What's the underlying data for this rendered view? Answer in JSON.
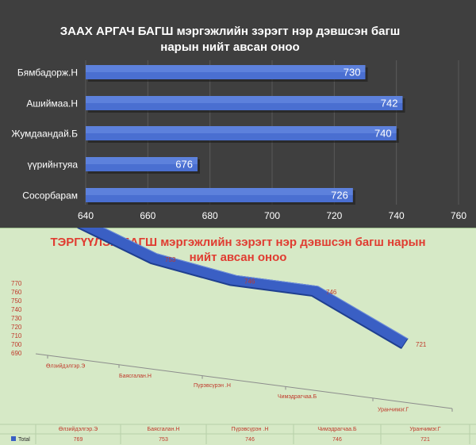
{
  "chart_data": [
    {
      "type": "bar",
      "orientation": "horizontal",
      "title": "ЗААХ АРГАЧ БАГШ мэргэжлийн зэрэгт нэр дэвшсэн багш нарын нийт авсан оноо",
      "title_lines": [
        "ЗААХ АРГАЧ БАГШ мэргэжлийн зэрэгт нэр дэвшсэн багш",
        "нарын нийт авсан оноо"
      ],
      "categories": [
        "Бямбадорж.Н",
        "Ашиймаа.Н",
        "Жумдаандай.Б",
        "үүрийнтуяа",
        "Сосорбарам"
      ],
      "values": [
        730,
        742,
        740,
        676,
        726
      ],
      "value_labels": [
        "730",
        "742",
        "740",
        "676",
        "726"
      ],
      "xlim": [
        640,
        760
      ],
      "xticks": [
        "640",
        "660",
        "680",
        "700",
        "720",
        "740",
        "760"
      ],
      "grid": true,
      "colors": {
        "background": "#3f3f3f",
        "bar": "#4a6fd1",
        "bar_dark": "#2b4a9e",
        "text": "#ffffff",
        "grid": "#5a5a5a"
      }
    },
    {
      "type": "line",
      "style": "3d-ribbon",
      "title": "ТЭРГҮҮЛЭХ БАГШ мэргэжлийн зэрэгт нэр дэвшсэн багш нарын нийт авсан оноо",
      "title_lines": [
        "ТЭРГҮҮЛЭХ БАГШ мэргэжлийн зэрэгт нэр дэвшсэн багш нарын",
        "нийт авсан оноо"
      ],
      "categories": [
        "Өлзийдэлгэр.Э",
        "Баясгалан.Н",
        "Пүрэвсүрэн .Н",
        "Чимэдрагчаа.Б",
        "Уранчимэг.Г"
      ],
      "values": [
        769,
        753,
        746,
        746,
        721
      ],
      "point_labels": [
        "769",
        "753",
        "746",
        "746",
        "721"
      ],
      "ylim": [
        690,
        770
      ],
      "yticks": [
        "770",
        "760",
        "750",
        "740",
        "730",
        "720",
        "710",
        "700",
        "690"
      ],
      "table": {
        "series_label": "Total",
        "headers": [
          "Өлзийдэлгэр.Э",
          "Баясгалан.Н",
          "Пүрэвсүрэн .Н",
          "Чимэдрагчаа.Б",
          "Уранчимэг.Г"
        ],
        "values": [
          "769",
          "753",
          "746",
          "746",
          "721"
        ]
      },
      "colors": {
        "background": "#d6e9c6",
        "title": "#e03c31",
        "ribbon": "#3a5fc4",
        "ribbon_edge": "#1f3f8f",
        "label": "#c0392b"
      }
    }
  ]
}
